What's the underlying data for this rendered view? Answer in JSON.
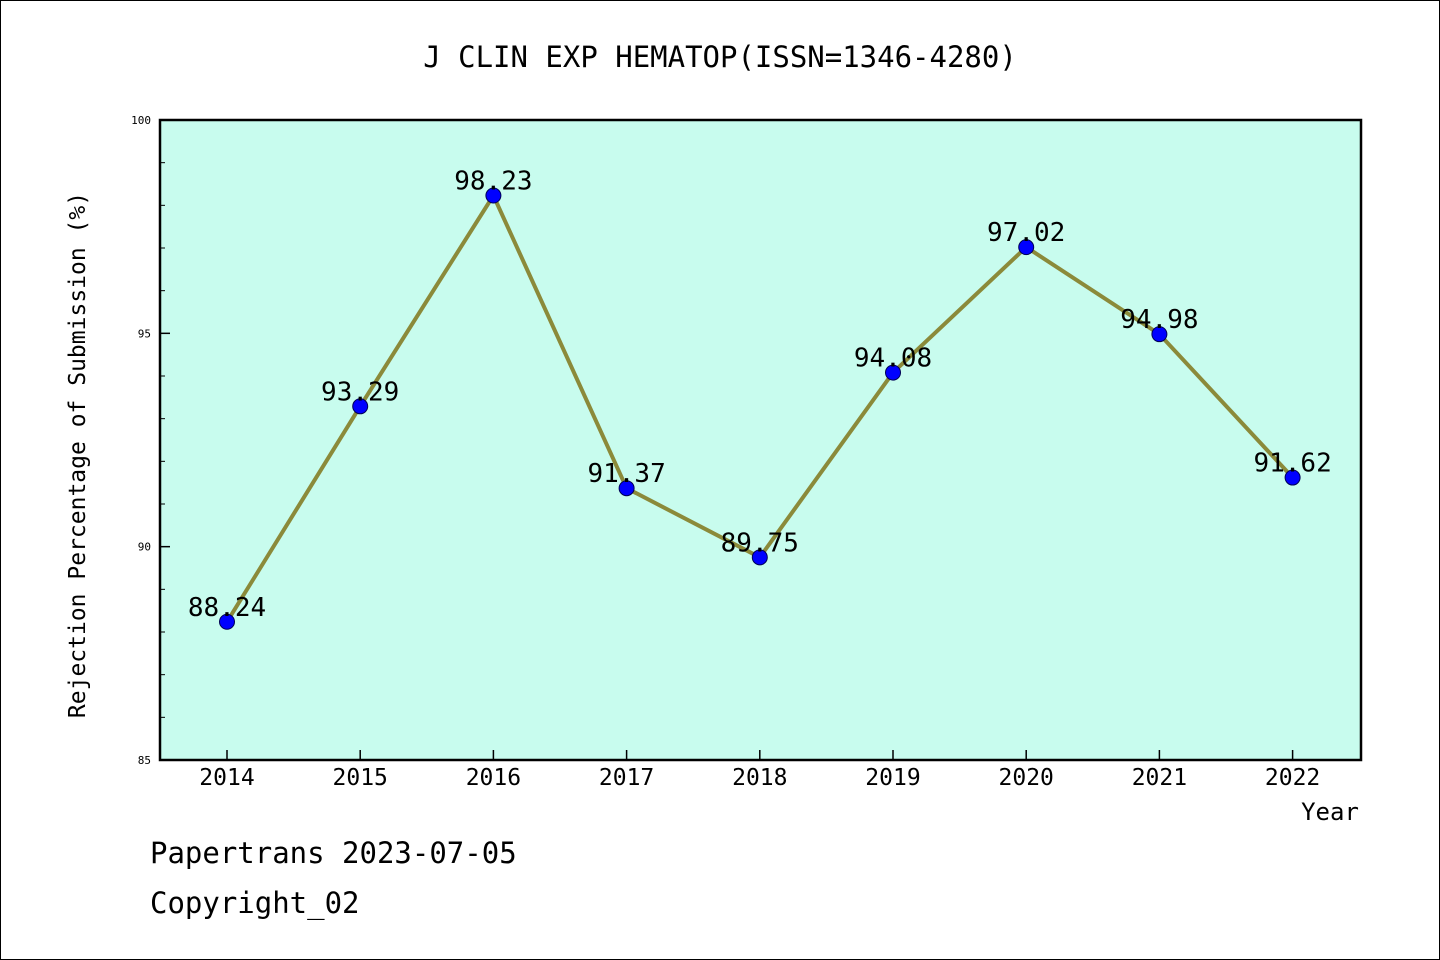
{
  "chart_data": {
    "type": "line",
    "title": "J CLIN EXP HEMATOP(ISSN=1346-4280)",
    "xlabel": "Year",
    "ylabel": "Rejection Percentage of Submission (%)",
    "categories": [
      "2014",
      "2015",
      "2016",
      "2017",
      "2018",
      "2019",
      "2020",
      "2021",
      "2022"
    ],
    "values": [
      88.24,
      93.29,
      98.23,
      91.37,
      89.75,
      94.08,
      97.02,
      94.98,
      91.62
    ],
    "value_labels": [
      "88.24",
      "93.29",
      "98.23",
      "91.37",
      "89.75",
      "94.08",
      "97.02",
      "94.98",
      "91.62"
    ],
    "ylim": [
      85,
      100
    ],
    "yticks": [
      "85",
      "90",
      "95",
      "100"
    ],
    "grid": false,
    "legend": "none",
    "colors": {
      "plot_background": "#c8fcee",
      "line": "#8b8a3a",
      "marker": "#0000ff"
    }
  },
  "footer": {
    "source": "Papertrans 2023-07-05",
    "copyright": "Copyright_02"
  }
}
